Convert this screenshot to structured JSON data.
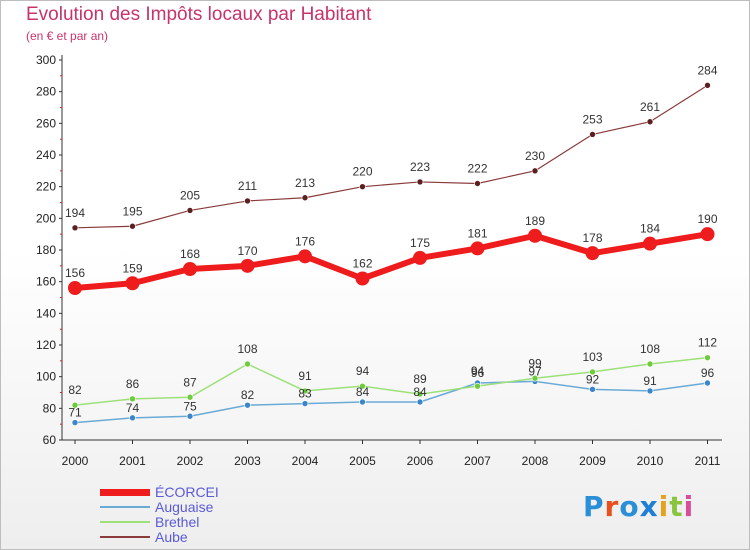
{
  "header": {
    "title": "Evolution des Impôts locaux par Habitant",
    "subtitle": "(en € et par an)"
  },
  "logo": {
    "letters": [
      "P",
      "r",
      "o",
      "x",
      "i",
      "t",
      "i"
    ],
    "colors": [
      "#2a8fd6",
      "#e8501e",
      "#2a8fd6",
      "#1f7fd4",
      "#e8a11e",
      "#8bc43f",
      "#d94c9a"
    ]
  },
  "chart_data": {
    "type": "line",
    "x": [
      "2000",
      "2001",
      "2002",
      "2003",
      "2004",
      "2005",
      "2006",
      "2007",
      "2008",
      "2009",
      "2010",
      "2011"
    ],
    "ylim": [
      60,
      300
    ],
    "yticks": [
      60,
      80,
      100,
      120,
      140,
      160,
      180,
      200,
      220,
      240,
      260,
      280,
      300
    ],
    "series": [
      {
        "name": "ÉCORCEI",
        "color": "#ee1c1c",
        "width": 6,
        "marker": 7,
        "values": [
          156,
          159,
          168,
          170,
          176,
          162,
          175,
          181,
          189,
          178,
          184,
          190
        ],
        "labels": [
          "156",
          "159",
          "168",
          "170",
          "176",
          "162",
          "175",
          "181",
          "189",
          "178",
          "184",
          "190"
        ]
      },
      {
        "name": "Auguaise",
        "color": "#6aaad6",
        "marker_color": "#3a86c8",
        "width": 1.5,
        "marker": 3,
        "values": [
          71,
          74,
          75,
          82,
          83,
          84,
          84,
          96,
          97,
          92,
          91,
          96
        ],
        "labels": [
          "71",
          "74",
          "75",
          "82",
          "83",
          "84",
          "84",
          "96",
          "97",
          "92",
          "91",
          "96"
        ]
      },
      {
        "name": "Brethel",
        "color": "#9de07a",
        "marker_color": "#6ccc3a",
        "width": 1.5,
        "marker": 3,
        "values": [
          82,
          86,
          87,
          108,
          91,
          94,
          89,
          94,
          99,
          103,
          108,
          112
        ],
        "labels": [
          "82",
          "86",
          "87",
          "108",
          "91",
          "94",
          "89",
          "94",
          "99",
          "103",
          "108",
          "112"
        ]
      },
      {
        "name": "Aube",
        "color": "#8a3b3b",
        "marker_color": "#5c1f1f",
        "width": 1.2,
        "marker": 3,
        "values": [
          194,
          195,
          205,
          211,
          213,
          220,
          223,
          222,
          230,
          253,
          261,
          284
        ],
        "labels": [
          "194",
          "195",
          "205",
          "211",
          "213",
          "220",
          "223",
          "222",
          "230",
          "253",
          "261",
          "284"
        ]
      }
    ],
    "grid": false,
    "legend": "bottom-left"
  }
}
